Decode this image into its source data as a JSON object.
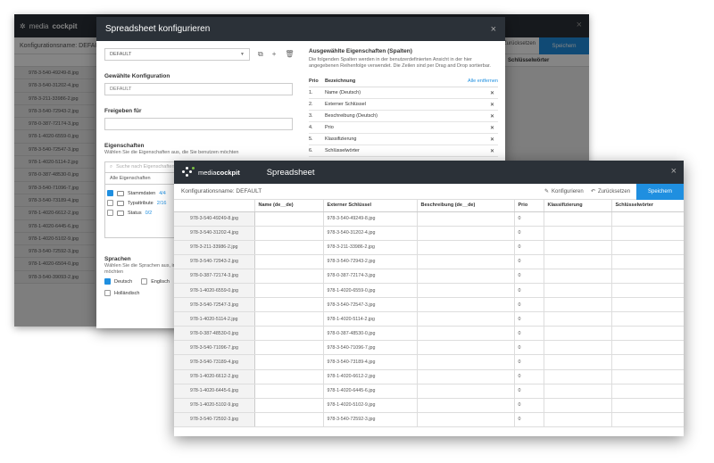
{
  "background_window": {
    "logo_text_light": "media",
    "logo_text_bold": "cockpit",
    "config_name": "Konfigurationsname: DEFAULT",
    "reset_label": "Zurücksetzen",
    "save_label": "Speichern",
    "column_header": "Schlüsselwörter",
    "rows": [
      "978-3-540-49249-8.jpg",
      "978-3-540-31202-4.jpg",
      "978-3-211-33986-2.jpg",
      "978-3-540-72943-2.jpg",
      "978-0-387-72174-3.jpg",
      "978-1-4020-6559-0.jpg",
      "978-3-540-72547-3.jpg",
      "978-1-4020-5114-2.jpg",
      "978-0-387-48530-0.jpg",
      "978-3-540-71096-7.jpg",
      "978-3-540-73189-4.jpg",
      "978-1-4020-6612-2.jpg",
      "978-1-4020-6445-6.jpg",
      "978-1-4020-5102-9.jpg",
      "978-3-540-72592-3.jpg",
      "978-1-4020-6504-0.jpg",
      "978-3-540-39093-2.jpg"
    ]
  },
  "dialog": {
    "title": "Spreadsheet konfigurieren",
    "close": "×",
    "preset_select": "DEFAULT",
    "chosen_config_label": "Gewählte Konfiguration",
    "chosen_config_value": "DEFAULT",
    "share_label": "Freigeben für",
    "properties_label": "Eigenschaften",
    "properties_hint": "Wählen Sie die Eigenschaften aus, die Sie benutzen möchten",
    "search_placeholder": "Suche nach Eigenschaften",
    "all_properties": "Alle Eigenschaften",
    "tree": [
      {
        "label": "Stammdaten",
        "count": "4/4",
        "checked": true
      },
      {
        "label": "Typattribute",
        "count": "2/16",
        "checked": false
      },
      {
        "label": "Status",
        "count": "0/2",
        "checked": false
      }
    ],
    "languages_label": "Sprachen",
    "languages_hint": "Wählen Sie die Sprachen aus, in d",
    "languages_hint2": "möchten",
    "languages": [
      {
        "label": "Deutsch",
        "checked": true
      },
      {
        "label": "Englisch",
        "checked": false
      },
      {
        "label": "Holländisch",
        "checked": false
      }
    ],
    "selected_title": "Ausgewählte Eigenschaften (Spalten)",
    "selected_hint": "Die folgenden Spalten werden in der benutzerdefinierten Ansicht in der hier angegebenen Reihenfolge verwendet. Die Zeilen sind per Drag and Drop sortierbar.",
    "col_prio": "Prio",
    "col_name": "Bezeichnung",
    "remove_all": "Alle entfernen",
    "selected_rows": [
      {
        "num": "1.",
        "label": "Name (Deutsch)"
      },
      {
        "num": "2.",
        "label": "Externer Schlüssel"
      },
      {
        "num": "3.",
        "label": "Beschreibung (Deutsch)"
      },
      {
        "num": "4.",
        "label": "Prio"
      },
      {
        "num": "5.",
        "label": "Klassifizierung"
      },
      {
        "num": "6.",
        "label": "Schlüsselwörter"
      }
    ]
  },
  "front": {
    "logo_text_light": "media",
    "logo_text_bold": "cockpit",
    "title": "Spreadsheet",
    "close": "×",
    "config_name": "Konfigurationsname: DEFAULT",
    "configure_label": "Konfigurieren",
    "reset_label": "Zurücksetzen",
    "save_label": "Speichern",
    "columns": [
      "",
      "Name (de__de)",
      "Externer Schlüssel",
      "Beschreibung (de__de)",
      "Prio",
      "Klassifizierung",
      "Schlüsselwörter"
    ],
    "rows": [
      {
        "id": "978-3-540-49249-8.jpg",
        "key": "978-3-540-49249-8.jpg",
        "prio": "0"
      },
      {
        "id": "978-3-540-31202-4.jpg",
        "key": "978-3-540-31202-4.jpg",
        "prio": "0"
      },
      {
        "id": "978-3-211-33986-2.jpg",
        "key": "978-3-211-33986-2.jpg",
        "prio": "0"
      },
      {
        "id": "978-3-540-72943-2.jpg",
        "key": "978-3-540-72943-2.jpg",
        "prio": "0"
      },
      {
        "id": "978-0-387-72174-3.jpg",
        "key": "978-0-387-72174-3.jpg",
        "prio": "0"
      },
      {
        "id": "978-1-4020-6559-0.jpg",
        "key": "978-1-4020-6559-0.jpg",
        "prio": "0"
      },
      {
        "id": "978-3-540-72547-3.jpg",
        "key": "978-3-540-72547-3.jpg",
        "prio": "0"
      },
      {
        "id": "978-1-4020-5114-2.jpg",
        "key": "978-1-4020-5114-2.jpg",
        "prio": "0"
      },
      {
        "id": "978-0-387-48530-0.jpg",
        "key": "978-0-387-48530-0.jpg",
        "prio": "0"
      },
      {
        "id": "978-3-540-71096-7.jpg",
        "key": "978-3-540-71096-7.jpg",
        "prio": "0"
      },
      {
        "id": "978-3-540-73189-4.jpg",
        "key": "978-3-540-73189-4.jpg",
        "prio": "0"
      },
      {
        "id": "978-1-4020-6612-2.jpg",
        "key": "978-1-4020-6612-2.jpg",
        "prio": "0"
      },
      {
        "id": "978-1-4020-6445-6.jpg",
        "key": "978-1-4020-6445-6.jpg",
        "prio": "0"
      },
      {
        "id": "978-1-4020-5102-9.jpg",
        "key": "978-1-4020-5102-9.jpg",
        "prio": "0"
      },
      {
        "id": "978-3-540-72592-3.jpg",
        "key": "978-3-540-72592-3.jpg",
        "prio": "0"
      }
    ]
  },
  "colors": {
    "header_dark": "#2b3138",
    "accent_blue": "#1f8fe0"
  }
}
